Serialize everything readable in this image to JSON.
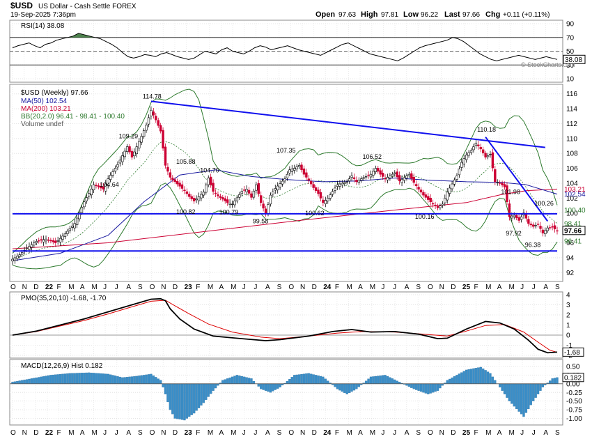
{
  "header": {
    "symbol": "$USD",
    "name": "US Dollar - Cash Settle FOREX",
    "date": "19-Sep-2025 7:36pm",
    "open_label": "Open",
    "open": "97.63",
    "high_label": "High",
    "high": "97.81",
    "low_label": "Low",
    "low": "96.22",
    "last_label": "Last",
    "last": "97.66",
    "chg_label": "Chg",
    "chg": "+0.11 (+0.11%)",
    "credit": "© StockCharts.com"
  },
  "colors": {
    "price_up": "#000000",
    "price_down": "#cc0033",
    "ma50": "#1a1aa0",
    "ma200": "#cc0033",
    "bb": "#2d7a2d",
    "trendline": "#1010ee",
    "pmo": "#000000",
    "pmo_signal": "#dd0000",
    "macd_hist": "#3a8ec8",
    "rsi_fill": "#2d6b2d"
  },
  "x_axis_labels": [
    "O",
    "N",
    "D",
    "22",
    "F",
    "M",
    "A",
    "M",
    "J",
    "J",
    "A",
    "S",
    "O",
    "N",
    "D",
    "23",
    "F",
    "M",
    "A",
    "M",
    "J",
    "J",
    "A",
    "S",
    "O",
    "N",
    "D",
    "24",
    "F",
    "M",
    "A",
    "M",
    "J",
    "J",
    "A",
    "S",
    "O",
    "N",
    "D",
    "25",
    "F",
    "M",
    "A",
    "M",
    "J",
    "J",
    "A",
    "S"
  ],
  "chart_data": [
    {
      "type": "line",
      "panel": "rsi",
      "label": "RSI(14) 38.08",
      "ylim": [
        10,
        90
      ],
      "y_ticks": [
        "90",
        "70",
        "50",
        "30",
        "10"
      ],
      "current": "38.08",
      "overbought": 70,
      "oversold": 30,
      "mid": 50,
      "values": [
        55,
        58,
        60,
        62,
        58,
        55,
        60,
        62,
        66,
        68,
        70,
        72,
        76,
        74,
        72,
        70,
        68,
        64,
        60,
        55,
        48,
        42,
        40,
        42,
        45,
        44,
        42,
        46,
        48,
        45,
        42,
        40,
        38,
        40,
        45,
        50,
        48,
        46,
        52,
        55,
        50,
        48,
        46,
        50,
        55,
        58,
        56,
        52,
        54,
        56,
        58,
        55,
        52,
        50,
        48,
        46,
        44,
        48,
        52,
        56,
        60,
        62,
        58,
        54,
        50,
        46,
        44,
        42,
        40,
        38,
        36,
        40,
        45,
        50,
        55,
        58,
        60,
        62,
        64,
        66,
        70,
        68,
        64,
        58,
        52,
        46,
        42,
        38,
        36,
        38,
        40,
        42,
        44,
        42,
        40,
        38,
        40,
        42,
        40,
        38
      ]
    },
    {
      "type": "candlestick",
      "panel": "price",
      "label": "$USD (Weekly) 97.66",
      "ma50_label": "MA(50) 102.54",
      "ma200_label": "MA(200) 103.21",
      "bb_label": "BB(20,2.0) 96.41 - 98.41 - 100.40",
      "volume_label": "Volume undef",
      "ylim": [
        91,
        117
      ],
      "y_ticks": [
        "116",
        "114",
        "112",
        "110",
        "108",
        "106",
        "104",
        "102",
        "100",
        "98",
        "96",
        "94",
        "92"
      ],
      "right_labels": [
        "103.21",
        "102.54",
        "100.40",
        "98.41",
        "97.66",
        "96.41"
      ],
      "annotations": [
        "114.78",
        "109.29",
        "104.64",
        "105.88",
        "104.70",
        "107.35",
        "106.52",
        "110.18",
        "101.98",
        "100.26",
        "100.82",
        "100.79",
        "99.58",
        "100.62",
        "100.16",
        "97.92",
        "96.38"
      ],
      "close_points": [
        [
          0,
          93.8
        ],
        [
          3,
          94.4
        ],
        [
          6,
          95.3
        ],
        [
          10,
          96.2
        ],
        [
          14,
          96.5
        ],
        [
          18,
          96.0
        ],
        [
          22,
          97.2
        ],
        [
          26,
          98.6
        ],
        [
          30,
          101.5
        ],
        [
          34,
          103.8
        ],
        [
          38,
          103.2
        ],
        [
          40,
          104.6
        ],
        [
          44,
          106.5
        ],
        [
          48,
          108.9
        ],
        [
          50,
          107.5
        ],
        [
          54,
          110.3
        ],
        [
          56,
          111.8
        ],
        [
          58,
          113.8
        ],
        [
          60,
          112.5
        ],
        [
          62,
          111.0
        ],
        [
          64,
          106.4
        ],
        [
          66,
          104.8
        ],
        [
          68,
          104.2
        ],
        [
          72,
          103.0
        ],
        [
          74,
          102.2
        ],
        [
          76,
          101.6
        ],
        [
          80,
          102.8
        ],
        [
          82,
          104.7
        ],
        [
          84,
          102.9
        ],
        [
          86,
          102.3
        ],
        [
          90,
          101.4
        ],
        [
          92,
          101.2
        ],
        [
          96,
          102.9
        ],
        [
          98,
          103.2
        ],
        [
          100,
          102.1
        ],
        [
          102,
          103.8
        ],
        [
          104,
          101.4
        ],
        [
          106,
          99.9
        ],
        [
          108,
          102.4
        ],
        [
          110,
          103.3
        ],
        [
          114,
          104.6
        ],
        [
          116,
          105.8
        ],
        [
          118,
          106.0
        ],
        [
          120,
          106.4
        ],
        [
          122,
          105.2
        ],
        [
          124,
          104.4
        ],
        [
          126,
          103.4
        ],
        [
          128,
          102.6
        ],
        [
          130,
          101.4
        ],
        [
          132,
          102.0
        ],
        [
          136,
          103.8
        ],
        [
          140,
          104.2
        ],
        [
          142,
          105.0
        ],
        [
          144,
          104.2
        ],
        [
          146,
          104.6
        ],
        [
          150,
          105.2
        ],
        [
          152,
          106.0
        ],
        [
          154,
          105.2
        ],
        [
          156,
          104.6
        ],
        [
          160,
          105.4
        ],
        [
          162,
          104.3
        ],
        [
          166,
          105.2
        ],
        [
          168,
          104.1
        ],
        [
          170,
          103.2
        ],
        [
          172,
          102.4
        ],
        [
          176,
          101.2
        ],
        [
          178,
          100.7
        ],
        [
          180,
          101.2
        ],
        [
          182,
          102.8
        ],
        [
          184,
          103.9
        ],
        [
          186,
          105.0
        ],
        [
          188,
          106.8
        ],
        [
          190,
          107.8
        ],
        [
          192,
          108.4
        ],
        [
          194,
          109.4
        ],
        [
          196,
          108.6
        ],
        [
          198,
          107.5
        ],
        [
          200,
          107.9
        ],
        [
          202,
          104.2
        ],
        [
          204,
          104.0
        ],
        [
          206,
          103.5
        ],
        [
          208,
          99.5
        ],
        [
          210,
          99.7
        ],
        [
          212,
          99.0
        ],
        [
          214,
          100.0
        ],
        [
          216,
          98.6
        ],
        [
          218,
          98.2
        ],
        [
          220,
          98.5
        ],
        [
          222,
          97.3
        ],
        [
          224,
          98.0
        ],
        [
          226,
          98.1
        ],
        [
          228,
          97.6
        ]
      ],
      "ma50_points": [
        [
          0,
          93.6
        ],
        [
          20,
          94.6
        ],
        [
          40,
          97.0
        ],
        [
          55,
          101.5
        ],
        [
          70,
          105.1
        ],
        [
          85,
          105.8
        ],
        [
          100,
          104.9
        ],
        [
          115,
          104.5
        ],
        [
          130,
          104.2
        ],
        [
          145,
          104.3
        ],
        [
          160,
          104.7
        ],
        [
          175,
          104.4
        ],
        [
          190,
          104.2
        ],
        [
          205,
          104.1
        ],
        [
          215,
          103.8
        ],
        [
          228,
          102.54
        ]
      ],
      "ma200_points": [
        [
          0,
          95.2
        ],
        [
          40,
          96.0
        ],
        [
          80,
          97.5
        ],
        [
          120,
          99.0
        ],
        [
          160,
          100.4
        ],
        [
          190,
          101.4
        ],
        [
          205,
          102.5
        ],
        [
          215,
          103.0
        ],
        [
          228,
          103.21
        ]
      ],
      "trendlines": [
        [
          [
            58,
            115.0
          ],
          [
            223,
            108.8
          ]
        ],
        [
          [
            198,
            110.2
          ],
          [
            224,
            98.9
          ]
        ],
        [
          [
            0,
            99.9
          ],
          [
            228,
            99.9
          ]
        ],
        [
          [
            0,
            94.9
          ],
          [
            228,
            94.9
          ]
        ]
      ]
    },
    {
      "type": "line",
      "panel": "pmo",
      "label": "PMO(35,20,10) -1.68, -1.70",
      "ylim": [
        -2,
        4
      ],
      "y_ticks": [
        "4",
        "3",
        "2",
        "1",
        "0",
        "-1",
        "-2"
      ],
      "right_label": "-1.68",
      "pmo_points": [
        [
          0,
          0
        ],
        [
          10,
          0.4
        ],
        [
          20,
          1.0
        ],
        [
          30,
          1.6
        ],
        [
          40,
          2.3
        ],
        [
          50,
          3.0
        ],
        [
          58,
          3.55
        ],
        [
          62,
          3.6
        ],
        [
          64,
          3.4
        ],
        [
          66,
          2.6
        ],
        [
          70,
          1.6
        ],
        [
          76,
          0.6
        ],
        [
          84,
          -0.1
        ],
        [
          96,
          -0.35
        ],
        [
          106,
          -0.55
        ],
        [
          112,
          -0.45
        ],
        [
          124,
          -0.1
        ],
        [
          134,
          0.35
        ],
        [
          142,
          0.55
        ],
        [
          150,
          0.3
        ],
        [
          160,
          0.35
        ],
        [
          170,
          0.1
        ],
        [
          178,
          -0.35
        ],
        [
          182,
          -0.3
        ],
        [
          190,
          0.6
        ],
        [
          198,
          1.35
        ],
        [
          204,
          1.2
        ],
        [
          210,
          0.6
        ],
        [
          216,
          -0.5
        ],
        [
          220,
          -1.4
        ],
        [
          224,
          -1.75
        ],
        [
          228,
          -1.68
        ]
      ],
      "signal_points": [
        [
          0,
          0
        ],
        [
          10,
          0.35
        ],
        [
          20,
          0.9
        ],
        [
          30,
          1.45
        ],
        [
          40,
          2.1
        ],
        [
          50,
          2.8
        ],
        [
          58,
          3.35
        ],
        [
          64,
          3.45
        ],
        [
          68,
          2.9
        ],
        [
          74,
          2.1
        ],
        [
          82,
          1.1
        ],
        [
          92,
          0.3
        ],
        [
          104,
          -0.2
        ],
        [
          112,
          -0.35
        ],
        [
          124,
          -0.1
        ],
        [
          136,
          0.2
        ],
        [
          146,
          0.35
        ],
        [
          160,
          0.3
        ],
        [
          172,
          0.1
        ],
        [
          182,
          -0.1
        ],
        [
          190,
          0.4
        ],
        [
          198,
          0.95
        ],
        [
          206,
          1.05
        ],
        [
          214,
          0.3
        ],
        [
          220,
          -0.7
        ],
        [
          225,
          -1.5
        ],
        [
          228,
          -1.7
        ]
      ]
    },
    {
      "type": "bar",
      "panel": "macd",
      "label": "MACD(12,26,9) Hist 0.182",
      "ylim": [
        -1.15,
        0.62
      ],
      "y_ticks": [
        "0.50",
        "0.25",
        "0.00",
        "-0.25",
        "-0.50",
        "-0.75",
        "-1.00"
      ],
      "right_label": "0.182",
      "hist_points": [
        [
          0,
          0.05
        ],
        [
          8,
          0.15
        ],
        [
          16,
          0.25
        ],
        [
          24,
          0.3
        ],
        [
          32,
          0.32
        ],
        [
          40,
          0.28
        ],
        [
          46,
          0.18
        ],
        [
          52,
          0.22
        ],
        [
          58,
          0.28
        ],
        [
          62,
          0.1
        ],
        [
          64,
          -0.3
        ],
        [
          66,
          -0.75
        ],
        [
          68,
          -1.0
        ],
        [
          72,
          -1.05
        ],
        [
          76,
          -0.85
        ],
        [
          80,
          -0.55
        ],
        [
          84,
          -0.2
        ],
        [
          88,
          0.1
        ],
        [
          94,
          0.25
        ],
        [
          100,
          0.15
        ],
        [
          104,
          -0.15
        ],
        [
          108,
          -0.25
        ],
        [
          112,
          -0.1
        ],
        [
          118,
          0.25
        ],
        [
          124,
          0.3
        ],
        [
          130,
          0.2
        ],
        [
          136,
          -0.15
        ],
        [
          140,
          -0.3
        ],
        [
          144,
          -0.15
        ],
        [
          150,
          0.2
        ],
        [
          156,
          0.25
        ],
        [
          162,
          0.05
        ],
        [
          168,
          -0.15
        ],
        [
          174,
          -0.3
        ],
        [
          178,
          -0.2
        ],
        [
          182,
          0.1
        ],
        [
          190,
          0.4
        ],
        [
          196,
          0.48
        ],
        [
          200,
          0.3
        ],
        [
          204,
          -0.1
        ],
        [
          208,
          -0.5
        ],
        [
          212,
          -0.8
        ],
        [
          214,
          -0.95
        ],
        [
          218,
          -0.5
        ],
        [
          222,
          -0.1
        ],
        [
          226,
          0.15
        ],
        [
          228,
          0.18
        ]
      ]
    }
  ]
}
